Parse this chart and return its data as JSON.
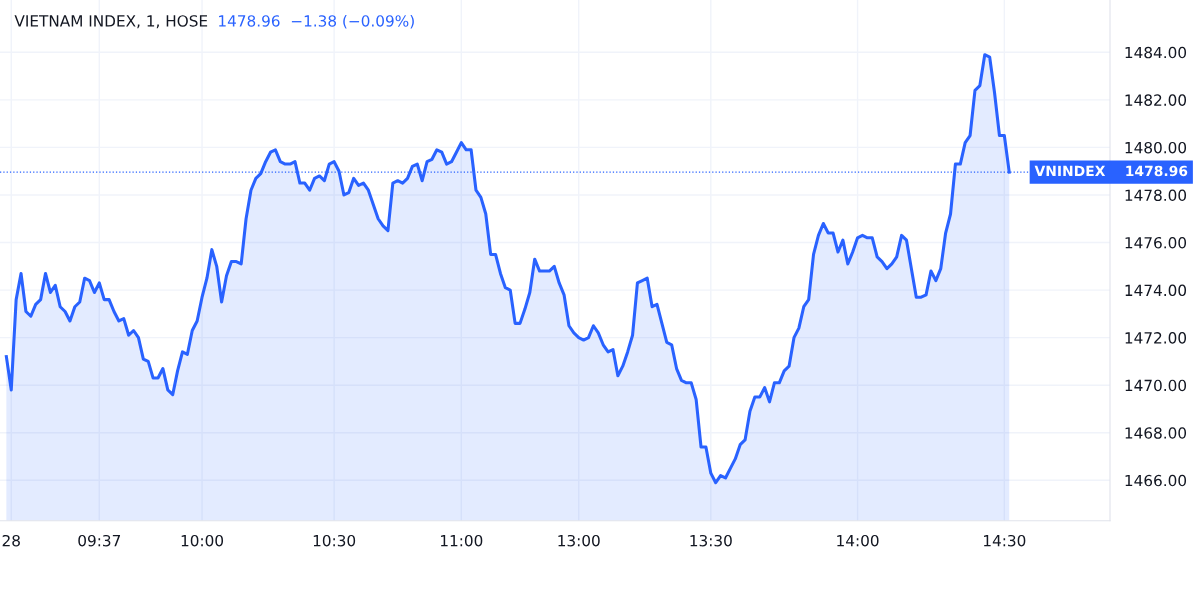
{
  "chart_data": {
    "type": "area",
    "title": "VIETNAM INDEX, 1, HOSE",
    "subtitle": "1478.96  −1.38 (−0.09%)",
    "categories": [
      null,
      "28",
      null,
      null,
      null,
      null,
      null,
      null,
      null,
      null,
      null,
      null,
      null,
      null,
      null,
      null,
      null,
      null,
      null,
      "09:37",
      null,
      null,
      null,
      null,
      null,
      null,
      null,
      null,
      null,
      null,
      null,
      null,
      null,
      null,
      null,
      null,
      null,
      null,
      null,
      null,
      "10:00",
      null,
      null,
      null,
      null,
      null,
      null,
      null,
      null,
      null,
      null,
      null,
      null,
      null,
      null,
      null,
      null,
      null,
      null,
      null,
      null,
      null,
      null,
      null,
      null,
      null,
      null,
      "10:30",
      null,
      null,
      null,
      null,
      null,
      null,
      null,
      null,
      null,
      null,
      null,
      null,
      null,
      null,
      null,
      null,
      null,
      null,
      null,
      null,
      null,
      null,
      null,
      null,
      null,
      "11:00",
      null,
      null,
      null,
      null,
      null,
      null,
      null,
      null,
      null,
      null,
      null,
      null,
      null,
      null,
      null,
      null,
      null,
      null,
      null,
      null,
      null,
      null,
      null,
      "13:00",
      null,
      null,
      null,
      null,
      null,
      null,
      null,
      null,
      null,
      null,
      null,
      null,
      null,
      null,
      null,
      null,
      null,
      null,
      null,
      null,
      null,
      null,
      null,
      null,
      null,
      null,
      "13:30",
      null,
      null,
      null,
      null,
      null,
      null,
      null,
      null,
      null,
      null,
      null,
      null,
      null,
      null,
      null,
      null,
      null,
      null,
      null,
      null,
      null,
      null,
      null,
      null,
      null,
      null,
      null,
      null,
      null,
      "14:00",
      null,
      null,
      null,
      null,
      null,
      null,
      null,
      null,
      null,
      null,
      null,
      null,
      null,
      null,
      null,
      null,
      null,
      null,
      null,
      null,
      null,
      null,
      null,
      null,
      null,
      null,
      null,
      null,
      null,
      "14:30",
      null
    ],
    "series": [
      {
        "color": "#2962ff",
        "values": [
          1471.2,
          1469.8,
          1473.6,
          1474.7,
          1473.1,
          1472.9,
          1473.4,
          1473.6,
          1474.7,
          1473.9,
          1474.2,
          1473.3,
          1473.1,
          1472.7,
          1473.3,
          1473.5,
          1474.5,
          1474.4,
          1473.9,
          1474.3,
          1473.6,
          1473.6,
          1473.1,
          1472.7,
          1472.8,
          1472.1,
          1472.3,
          1472.0,
          1471.1,
          1471.0,
          1470.3,
          1470.3,
          1470.7,
          1469.8,
          1469.6,
          1470.6,
          1471.4,
          1471.3,
          1472.3,
          1472.7,
          1473.7,
          1474.5,
          1475.7,
          1475.0,
          1473.5,
          1474.6,
          1475.2,
          1475.2,
          1475.1,
          1477.0,
          1478.2,
          1478.7,
          1478.9,
          1479.4,
          1479.8,
          1479.9,
          1479.4,
          1479.3,
          1479.3,
          1479.4,
          1478.5,
          1478.5,
          1478.2,
          1478.7,
          1478.8,
          1478.6,
          1479.3,
          1479.4,
          1479.0,
          1478.0,
          1478.1,
          1478.7,
          1478.4,
          1478.5,
          1478.2,
          1477.6,
          1477.0,
          1476.7,
          1476.5,
          1478.5,
          1478.6,
          1478.5,
          1478.7,
          1479.2,
          1479.3,
          1478.6,
          1479.4,
          1479.5,
          1479.9,
          1479.8,
          1479.3,
          1479.4,
          1479.8,
          1480.2,
          1479.9,
          1479.9,
          1478.2,
          1477.9,
          1477.2,
          1475.5,
          1475.5,
          1474.7,
          1474.1,
          1474.0,
          1472.6,
          1472.6,
          1473.2,
          1473.9,
          1475.3,
          1474.8,
          1474.8,
          1474.8,
          1475.0,
          1474.3,
          1473.8,
          1472.5,
          1472.2,
          1472.0,
          1471.9,
          1472.0,
          1472.5,
          1472.2,
          1471.7,
          1471.4,
          1471.5,
          1470.4,
          1470.8,
          1471.4,
          1472.1,
          1474.3,
          1474.4,
          1474.5,
          1473.3,
          1473.4,
          1472.6,
          1471.8,
          1471.7,
          1470.7,
          1470.2,
          1470.1,
          1470.1,
          1469.4,
          1467.4,
          1467.4,
          1466.3,
          1465.9,
          1466.2,
          1466.1,
          1466.5,
          1466.9,
          1467.5,
          1467.7,
          1468.9,
          1469.5,
          1469.5,
          1469.9,
          1469.3,
          1470.1,
          1470.1,
          1470.6,
          1470.8,
          1472.0,
          1472.4,
          1473.3,
          1473.6,
          1475.5,
          1476.3,
          1476.8,
          1476.4,
          1476.4,
          1475.6,
          1476.1,
          1475.1,
          1475.6,
          1476.2,
          1476.3,
          1476.2,
          1476.2,
          1475.4,
          1475.2,
          1474.9,
          1475.1,
          1475.4,
          1476.3,
          1476.1,
          1474.9,
          1473.7,
          1473.7,
          1473.8,
          1474.8,
          1474.4,
          1474.9,
          1476.4,
          1477.2,
          1479.3,
          1479.3,
          1480.2,
          1480.5,
          1482.4,
          1482.6,
          1483.9,
          1483.8,
          1482.3,
          1480.5,
          1480.5,
          1478.96
        ]
      }
    ],
    "ylim": [
      1464.3,
      1486.2
    ],
    "yticks": [
      {
        "value": 1466,
        "label": "1466.00"
      },
      {
        "value": 1468,
        "label": "1468.00"
      },
      {
        "value": 1470,
        "label": "1470.00"
      },
      {
        "value": 1472,
        "label": "1472.00"
      },
      {
        "value": 1474,
        "label": "1474.00"
      },
      {
        "value": 1476,
        "label": "1476.00"
      },
      {
        "value": 1478,
        "label": "1478.00"
      },
      {
        "value": 1480,
        "label": "1480.00"
      },
      {
        "value": 1482,
        "label": "1482.00"
      },
      {
        "value": 1484,
        "label": "1484.00"
      }
    ],
    "ref_lines": [
      {
        "axis": "y",
        "value": 1478.96,
        "label": "VNINDEX    1478.96",
        "color": "#2962ff",
        "line_style": "dotted"
      }
    ],
    "grid": true,
    "marker": "none",
    "line_style": "solid"
  }
}
